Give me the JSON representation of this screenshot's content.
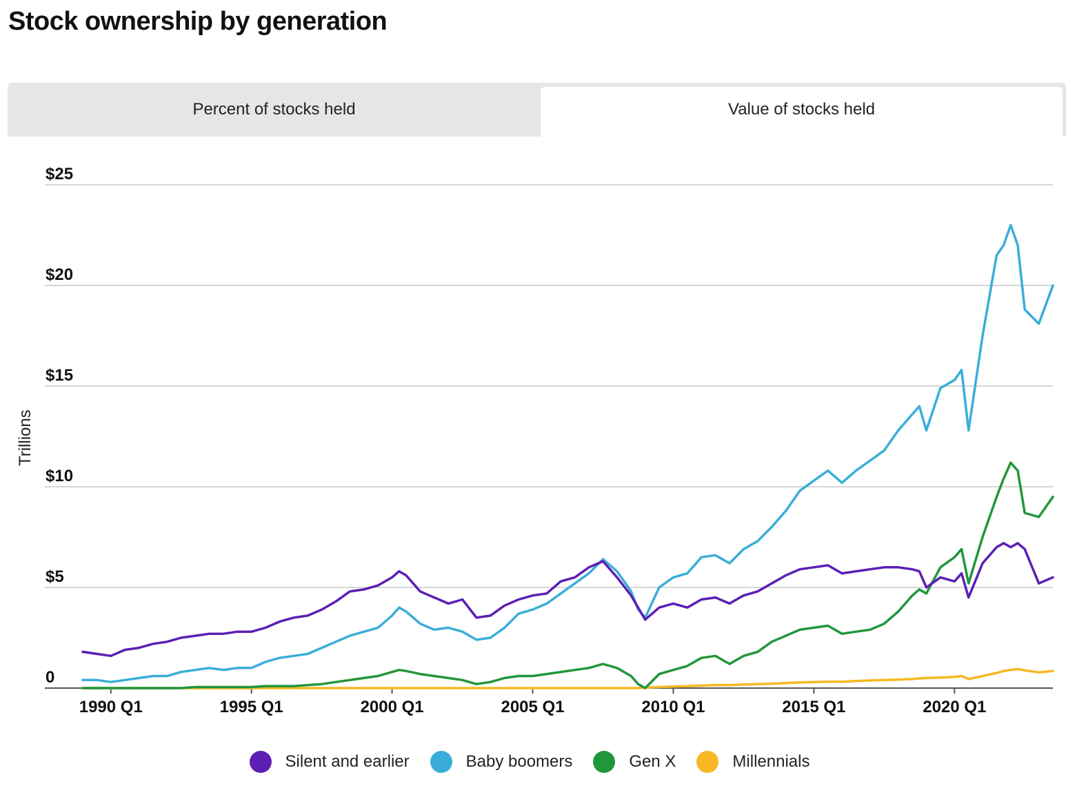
{
  "title": "Stock ownership by generation",
  "tabs": [
    {
      "label": "Percent of stocks held",
      "active": false
    },
    {
      "label": "Value of stocks held",
      "active": true
    }
  ],
  "chart_data": {
    "type": "line",
    "title": "Stock ownership by generation",
    "ylabel": "Trillions",
    "ylim": [
      0,
      25
    ],
    "yticks": [
      {
        "value": 0,
        "label": "0"
      },
      {
        "value": 5,
        "label": "$5"
      },
      {
        "value": 10,
        "label": "$10"
      },
      {
        "value": 15,
        "label": "$15"
      },
      {
        "value": 20,
        "label": "$20"
      },
      {
        "value": 25,
        "label": "$25"
      }
    ],
    "xlim": [
      1989.0,
      2023.5
    ],
    "xticks": [
      {
        "value": 1990.0,
        "label": "1990 Q1"
      },
      {
        "value": 1995.0,
        "label": "1995 Q1"
      },
      {
        "value": 2000.0,
        "label": "2000 Q1"
      },
      {
        "value": 2005.0,
        "label": "2005 Q1"
      },
      {
        "value": 2010.0,
        "label": "2010 Q1"
      },
      {
        "value": 2015.0,
        "label": "2015 Q1"
      },
      {
        "value": 2020.0,
        "label": "2020 Q1"
      }
    ],
    "grid": true,
    "legend_position": "bottom",
    "series": [
      {
        "name": "Silent and earlier",
        "color": "#5b1fb3",
        "x": [
          1989.0,
          1989.5,
          1990.0,
          1990.5,
          1991.0,
          1991.5,
          1992.0,
          1992.5,
          1993.0,
          1993.5,
          1994.0,
          1994.5,
          1995.0,
          1995.5,
          1996.0,
          1996.5,
          1997.0,
          1997.5,
          1998.0,
          1998.5,
          1999.0,
          1999.5,
          2000.0,
          2000.25,
          2000.5,
          2001.0,
          2001.5,
          2002.0,
          2002.5,
          2003.0,
          2003.5,
          2004.0,
          2004.5,
          2005.0,
          2005.5,
          2006.0,
          2006.5,
          2007.0,
          2007.5,
          2008.0,
          2008.5,
          2008.75,
          2009.0,
          2009.5,
          2010.0,
          2010.5,
          2011.0,
          2011.5,
          2012.0,
          2012.5,
          2013.0,
          2013.5,
          2014.0,
          2014.5,
          2015.0,
          2015.5,
          2016.0,
          2016.5,
          2017.0,
          2017.5,
          2018.0,
          2018.5,
          2018.75,
          2019.0,
          2019.5,
          2020.0,
          2020.25,
          2020.5,
          2021.0,
          2021.5,
          2021.75,
          2022.0,
          2022.25,
          2022.5,
          2023.0,
          2023.5
        ],
        "values": [
          1.8,
          1.7,
          1.6,
          1.9,
          2.0,
          2.2,
          2.3,
          2.5,
          2.6,
          2.7,
          2.7,
          2.8,
          2.8,
          3.0,
          3.3,
          3.5,
          3.6,
          3.9,
          4.3,
          4.8,
          4.9,
          5.1,
          5.5,
          5.8,
          5.6,
          4.8,
          4.5,
          4.2,
          4.4,
          3.5,
          3.6,
          4.1,
          4.4,
          4.6,
          4.7,
          5.3,
          5.5,
          6.0,
          6.3,
          5.5,
          4.6,
          4.0,
          3.4,
          4.0,
          4.2,
          4.0,
          4.4,
          4.5,
          4.2,
          4.6,
          4.8,
          5.2,
          5.6,
          5.9,
          6.0,
          6.1,
          5.7,
          5.8,
          5.9,
          6.0,
          6.0,
          5.9,
          5.8,
          5.0,
          5.5,
          5.3,
          5.7,
          4.5,
          6.2,
          7.0,
          7.2,
          7.0,
          7.2,
          6.9,
          5.2,
          5.5
        ]
      },
      {
        "name": "Baby boomers",
        "color": "#3aaed8",
        "x": [
          1989.0,
          1989.5,
          1990.0,
          1990.5,
          1991.0,
          1991.5,
          1992.0,
          1992.5,
          1993.0,
          1993.5,
          1994.0,
          1994.5,
          1995.0,
          1995.5,
          1996.0,
          1996.5,
          1997.0,
          1997.5,
          1998.0,
          1998.5,
          1999.0,
          1999.5,
          2000.0,
          2000.25,
          2000.5,
          2001.0,
          2001.5,
          2002.0,
          2002.5,
          2003.0,
          2003.5,
          2004.0,
          2004.5,
          2005.0,
          2005.5,
          2006.0,
          2006.5,
          2007.0,
          2007.5,
          2008.0,
          2008.5,
          2008.75,
          2009.0,
          2009.5,
          2010.0,
          2010.5,
          2011.0,
          2011.5,
          2012.0,
          2012.5,
          2013.0,
          2013.5,
          2014.0,
          2014.5,
          2015.0,
          2015.5,
          2016.0,
          2016.5,
          2017.0,
          2017.5,
          2018.0,
          2018.5,
          2018.75,
          2019.0,
          2019.5,
          2020.0,
          2020.25,
          2020.5,
          2021.0,
          2021.5,
          2021.75,
          2022.0,
          2022.25,
          2022.5,
          2023.0,
          2023.5
        ],
        "values": [
          0.4,
          0.4,
          0.3,
          0.4,
          0.5,
          0.6,
          0.6,
          0.8,
          0.9,
          1.0,
          0.9,
          1.0,
          1.0,
          1.3,
          1.5,
          1.6,
          1.7,
          2.0,
          2.3,
          2.6,
          2.8,
          3.0,
          3.6,
          4.0,
          3.8,
          3.2,
          2.9,
          3.0,
          2.8,
          2.4,
          2.5,
          3.0,
          3.7,
          3.9,
          4.2,
          4.7,
          5.2,
          5.7,
          6.4,
          5.8,
          4.8,
          3.9,
          3.5,
          5.0,
          5.5,
          5.7,
          6.5,
          6.6,
          6.2,
          6.9,
          7.3,
          8.0,
          8.8,
          9.8,
          10.3,
          10.8,
          10.2,
          10.8,
          11.3,
          11.8,
          12.8,
          13.6,
          14.0,
          12.8,
          14.9,
          15.3,
          15.8,
          12.8,
          17.5,
          21.5,
          22.0,
          23.0,
          22.0,
          18.8,
          18.1,
          20.0
        ]
      },
      {
        "name": "Gen X",
        "color": "#21963b",
        "x": [
          1989.0,
          1989.5,
          1990.0,
          1990.5,
          1991.0,
          1991.5,
          1992.0,
          1992.5,
          1993.0,
          1993.5,
          1994.0,
          1994.5,
          1995.0,
          1995.5,
          1996.0,
          1996.5,
          1997.0,
          1997.5,
          1998.0,
          1998.5,
          1999.0,
          1999.5,
          2000.0,
          2000.25,
          2000.5,
          2001.0,
          2001.5,
          2002.0,
          2002.5,
          2003.0,
          2003.5,
          2004.0,
          2004.5,
          2005.0,
          2005.5,
          2006.0,
          2006.5,
          2007.0,
          2007.5,
          2008.0,
          2008.5,
          2008.75,
          2009.0,
          2009.5,
          2010.0,
          2010.5,
          2011.0,
          2011.5,
          2012.0,
          2012.5,
          2013.0,
          2013.5,
          2014.0,
          2014.5,
          2015.0,
          2015.5,
          2016.0,
          2016.5,
          2017.0,
          2017.5,
          2018.0,
          2018.5,
          2018.75,
          2019.0,
          2019.5,
          2020.0,
          2020.25,
          2020.5,
          2021.0,
          2021.5,
          2021.75,
          2022.0,
          2022.25,
          2022.5,
          2023.0,
          2023.5
        ],
        "values": [
          0.0,
          0.0,
          0.0,
          0.0,
          0.0,
          0.0,
          0.0,
          0.0,
          0.05,
          0.05,
          0.05,
          0.05,
          0.05,
          0.1,
          0.1,
          0.1,
          0.15,
          0.2,
          0.3,
          0.4,
          0.5,
          0.6,
          0.8,
          0.9,
          0.85,
          0.7,
          0.6,
          0.5,
          0.4,
          0.2,
          0.3,
          0.5,
          0.6,
          0.6,
          0.7,
          0.8,
          0.9,
          1.0,
          1.2,
          1.0,
          0.6,
          0.2,
          0.0,
          0.7,
          0.9,
          1.1,
          1.5,
          1.6,
          1.2,
          1.6,
          1.8,
          2.3,
          2.6,
          2.9,
          3.0,
          3.1,
          2.7,
          2.8,
          2.9,
          3.2,
          3.8,
          4.6,
          4.9,
          4.7,
          6.0,
          6.5,
          6.9,
          5.2,
          7.5,
          9.5,
          10.4,
          11.2,
          10.8,
          8.7,
          8.5,
          9.5
        ]
      },
      {
        "name": "Millennials",
        "color": "#f7b824",
        "x": [
          1989.0,
          1995.0,
          2000.0,
          2005.0,
          2008.75,
          2009.0,
          2009.5,
          2010.0,
          2010.5,
          2011.0,
          2011.5,
          2012.0,
          2012.5,
          2013.0,
          2013.5,
          2014.0,
          2014.5,
          2015.0,
          2015.5,
          2016.0,
          2016.5,
          2017.0,
          2017.5,
          2018.0,
          2018.5,
          2018.75,
          2019.0,
          2019.5,
          2020.0,
          2020.25,
          2020.5,
          2021.0,
          2021.5,
          2021.75,
          2022.0,
          2022.25,
          2022.5,
          2023.0,
          2023.5
        ],
        "values": [
          0.0,
          0.0,
          0.0,
          0.0,
          0.0,
          0.02,
          0.05,
          0.08,
          0.1,
          0.12,
          0.15,
          0.15,
          0.18,
          0.2,
          0.22,
          0.25,
          0.28,
          0.3,
          0.32,
          0.32,
          0.35,
          0.38,
          0.4,
          0.42,
          0.45,
          0.48,
          0.5,
          0.52,
          0.55,
          0.6,
          0.45,
          0.6,
          0.75,
          0.85,
          0.9,
          0.95,
          0.88,
          0.78,
          0.85
        ]
      }
    ]
  },
  "legend": [
    {
      "label": "Silent and earlier",
      "color": "#5b1fb3"
    },
    {
      "label": "Baby boomers",
      "color": "#3aaed8"
    },
    {
      "label": "Gen X",
      "color": "#21963b"
    },
    {
      "label": "Millennials",
      "color": "#f7b824"
    }
  ]
}
